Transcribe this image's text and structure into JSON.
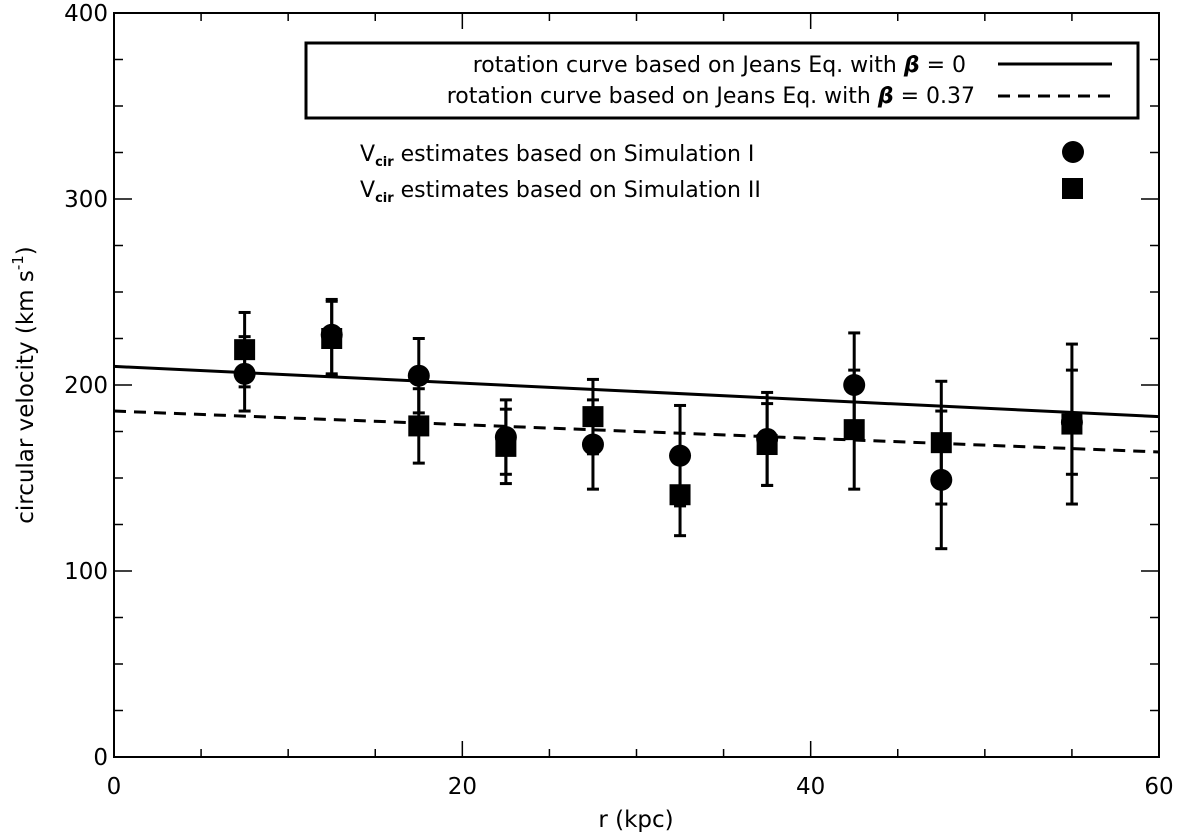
{
  "chart_data": {
    "type": "scatter",
    "xlabel": "r (kpc)",
    "ylabel": "circular velocity (km s",
    "ylabel_sup": "-1",
    "ylabel_suffix": ")",
    "xlim": [
      0,
      60
    ],
    "ylim": [
      0,
      400
    ],
    "x_ticks": [
      0,
      20,
      40,
      60
    ],
    "x_tick_labels": [
      "0",
      "20",
      "40",
      "60"
    ],
    "y_ticks": [
      0,
      100,
      200,
      300,
      400
    ],
    "y_tick_labels": [
      "0",
      "100",
      "200",
      "300",
      "400"
    ],
    "x_minor_step": 5,
    "y_minor_step": 25,
    "grid": false,
    "legend_placement": "top-right",
    "lines": [
      {
        "label_prefix": "rotation curve based on Jeans Eq. with ",
        "symbol": "β",
        "label_suffix": " = 0",
        "style": "solid",
        "x": [
          0,
          60
        ],
        "y": [
          210,
          183
        ]
      },
      {
        "label_prefix": "rotation curve based on Jeans Eq. with ",
        "symbol": "β",
        "label_suffix": " = 0.37",
        "style": "dashed",
        "x": [
          0,
          60
        ],
        "y": [
          186,
          164
        ]
      }
    ],
    "series": [
      {
        "label_main": "V",
        "label_sub": "cir",
        "label_rest": " estimates based on Simulation I",
        "marker": "circle",
        "x": [
          7.5,
          12.5,
          17.5,
          22.5,
          27.5,
          32.5,
          37.5,
          42.5,
          47.5,
          55
        ],
        "y": [
          206,
          227,
          205,
          172,
          168,
          162,
          171,
          200,
          149,
          180
        ],
        "err_low": [
          20,
          21,
          20,
          20,
          24,
          27,
          25,
          28,
          37,
          28
        ],
        "err_high": [
          20,
          19,
          20,
          20,
          24,
          27,
          25,
          28,
          37,
          28
        ]
      },
      {
        "label_main": "V",
        "label_sub": "cir",
        "label_rest": " estimates based on Simulation II",
        "marker": "square",
        "x": [
          7.5,
          12.5,
          17.5,
          22.5,
          27.5,
          32.5,
          37.5,
          42.5,
          47.5,
          55
        ],
        "y": [
          219,
          225,
          178,
          167,
          183,
          141,
          168,
          176,
          169,
          179
        ],
        "err_low": [
          20,
          20,
          20,
          20,
          20,
          22,
          22,
          32,
          33,
          43
        ],
        "err_high": [
          20,
          20,
          20,
          20,
          20,
          22,
          22,
          32,
          33,
          43
        ]
      }
    ]
  }
}
